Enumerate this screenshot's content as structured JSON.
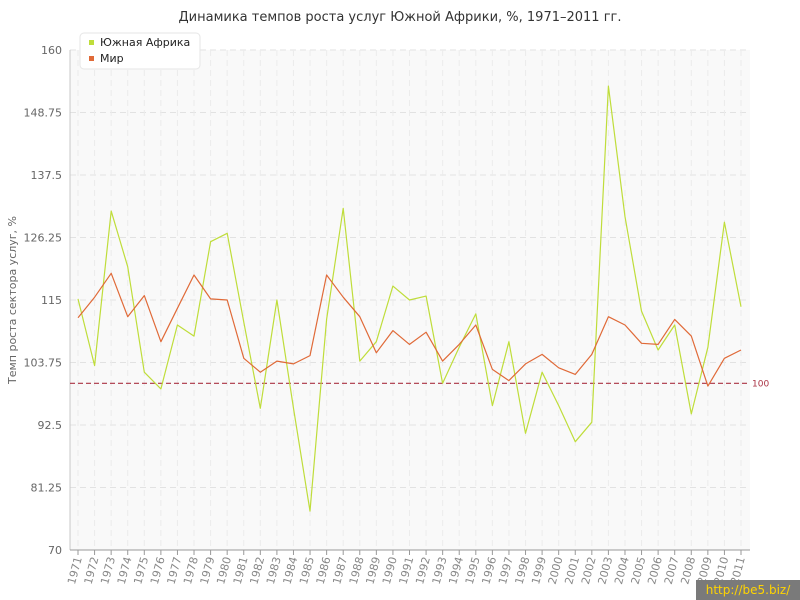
{
  "chart_data": {
    "type": "line",
    "title": "Динамика темпов роста услуг Южной Африки, %, 1971–2011 гг.",
    "ylabel": "Темп роста сектора услуг, %",
    "xlabel": "",
    "ylim": [
      70,
      160
    ],
    "yticks": [
      "70",
      "81.25",
      "92.5",
      "103.75",
      "115",
      "126.25",
      "137.5",
      "148.75",
      "160"
    ],
    "grid": true,
    "legend_position": "top-left",
    "reference_line": {
      "value": 100,
      "label": "100",
      "color": "#aa3344"
    },
    "categories": [
      "1971",
      "1972",
      "1973",
      "1974",
      "1975",
      "1976",
      "1977",
      "1978",
      "1979",
      "1980",
      "1981",
      "1982",
      "1983",
      "1984",
      "1985",
      "1986",
      "1987",
      "1988",
      "1989",
      "1990",
      "1991",
      "1992",
      "1993",
      "1994",
      "1995",
      "1996",
      "1997",
      "1998",
      "1999",
      "2000",
      "2001",
      "2002",
      "2003",
      "2004",
      "2005",
      "2006",
      "2007",
      "2008",
      "2009",
      "2010",
      "2011"
    ],
    "series": [
      {
        "name": "Южная Африка",
        "color": "#bfdd3a",
        "values": [
          115.2,
          103.2,
          131.0,
          121.0,
          102.0,
          99.0,
          110.5,
          108.5,
          125.5,
          127.0,
          111.0,
          95.5,
          115.0,
          95.5,
          77.0,
          111.5,
          131.5,
          104.0,
          107.5,
          117.5,
          115.0,
          115.7,
          100.0,
          106.5,
          112.5,
          96.0,
          107.5,
          91.0,
          102.0,
          96.0,
          89.5,
          93.0,
          153.5,
          130.0,
          113.0,
          106.0,
          110.5,
          94.5,
          106.5,
          129.0,
          113.8
        ]
      },
      {
        "name": "Мир",
        "color": "#e06a38",
        "values": [
          111.8,
          115.5,
          119.8,
          112.0,
          115.8,
          107.5,
          113.5,
          119.5,
          115.2,
          115.0,
          104.5,
          102.0,
          104.0,
          103.5,
          105.0,
          119.5,
          115.5,
          112.0,
          105.5,
          109.5,
          107.0,
          109.2,
          104.0,
          107.0,
          110.5,
          102.5,
          100.5,
          103.5,
          105.2,
          102.8,
          101.6,
          105.2,
          112.0,
          110.5,
          107.2,
          107.0,
          111.5,
          108.5,
          99.5,
          104.5,
          106.0
        ]
      }
    ]
  },
  "watermark": "http://be5.biz/"
}
